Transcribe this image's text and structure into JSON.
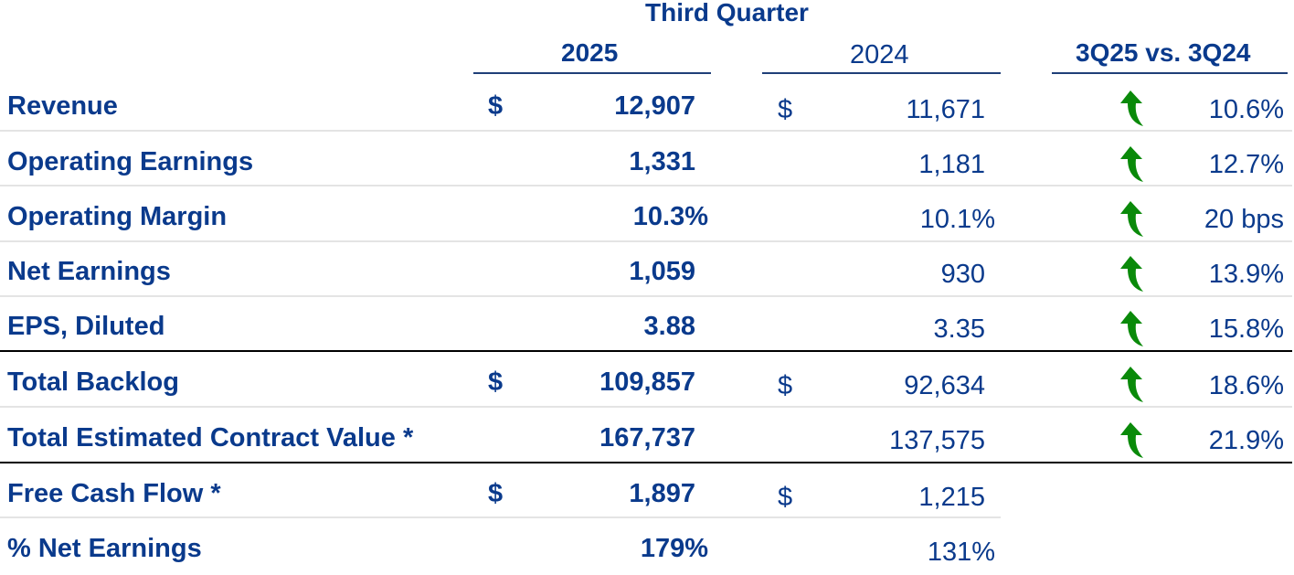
{
  "header": {
    "period": "Third Quarter",
    "col_2025": "2025",
    "col_2024": "2024",
    "col_change": "3Q25 vs. 3Q24"
  },
  "colors": {
    "text": "#0a3a8c",
    "arrow_up": "#0a8a0a",
    "rule": "#1f3f78"
  },
  "rows": [
    {
      "label": "Revenue",
      "cur_2025": "$",
      "val_2025": "12,907",
      "cur_2024": "$",
      "val_2024": "11,671",
      "arrow": "up-arrow-icon",
      "change": "10.6%"
    },
    {
      "label": "Operating Earnings",
      "cur_2025": "",
      "val_2025": "1,331",
      "cur_2024": "",
      "val_2024": "1,181",
      "arrow": "up-arrow-icon",
      "change": "12.7%"
    },
    {
      "label": "Operating Margin",
      "cur_2025": "",
      "val_2025": "10.3%",
      "cur_2024": "",
      "val_2024": "10.1%",
      "arrow": "up-arrow-icon",
      "change": "20 bps"
    },
    {
      "label": "Net Earnings",
      "cur_2025": "",
      "val_2025": "1,059",
      "cur_2024": "",
      "val_2024": "930",
      "arrow": "up-arrow-icon",
      "change": "13.9%"
    },
    {
      "label": "EPS, Diluted",
      "cur_2025": "",
      "val_2025": "3.88",
      "cur_2024": "",
      "val_2024": "3.35",
      "arrow": "up-arrow-icon",
      "change": "15.8%"
    },
    {
      "label": "Total Backlog",
      "cur_2025": "$",
      "val_2025": "109,857",
      "cur_2024": "$",
      "val_2024": "92,634",
      "arrow": "up-arrow-icon",
      "change": "18.6%"
    },
    {
      "label": "Total Estimated Contract Value *",
      "cur_2025": "",
      "val_2025": "167,737",
      "cur_2024": "",
      "val_2024": "137,575",
      "arrow": "up-arrow-icon",
      "change": "21.9%"
    },
    {
      "label": "Free Cash Flow *",
      "cur_2025": "$",
      "val_2025": "1,897",
      "cur_2024": "$",
      "val_2024": "1,215"
    },
    {
      "label": "% Net Earnings",
      "cur_2025": "",
      "val_2025": "179%",
      "cur_2024": "",
      "val_2024": "131%"
    }
  ]
}
